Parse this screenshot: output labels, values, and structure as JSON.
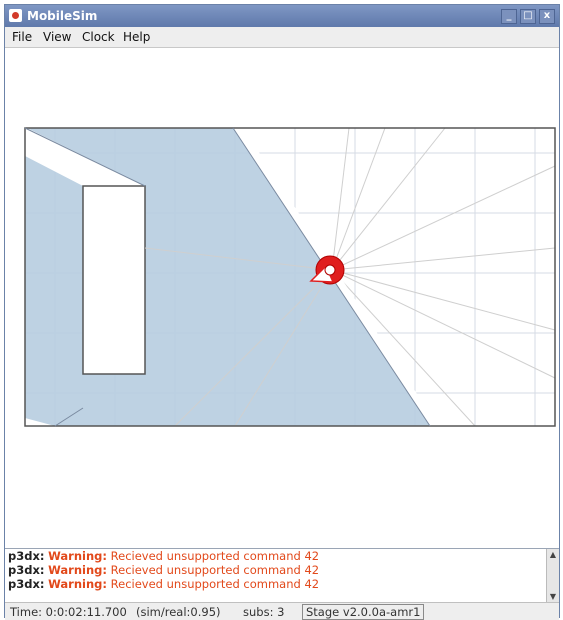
{
  "window": {
    "title": "MobileSim",
    "min_glyph": "_",
    "max_glyph": "□",
    "close_glyph": "x"
  },
  "menu": {
    "file": "File",
    "view": "View",
    "clock": "Clock",
    "help": "Help"
  },
  "simulation": {
    "icons": [
      "robot-icon"
    ],
    "colors": {
      "robot": "#e01e1e",
      "sonar_coverage": "#b7cde0",
      "walls": "#555555",
      "grid": "#d6dbe4"
    }
  },
  "log": {
    "lines": [
      {
        "source": "p3dx:",
        "level": "Warning:",
        "message": "Recieved unsupported command 42"
      },
      {
        "source": "p3dx:",
        "level": "Warning:",
        "message": "Recieved unsupported command 42"
      },
      {
        "source": "p3dx:",
        "level": "Warning:",
        "message": "Recieved unsupported command 42"
      }
    ]
  },
  "status": {
    "time": "Time: 0:0:02:11.700",
    "ratio": "(sim/real:0.95)",
    "subs": "subs: 3",
    "stage": "Stage v2.0.0a-amr1"
  }
}
